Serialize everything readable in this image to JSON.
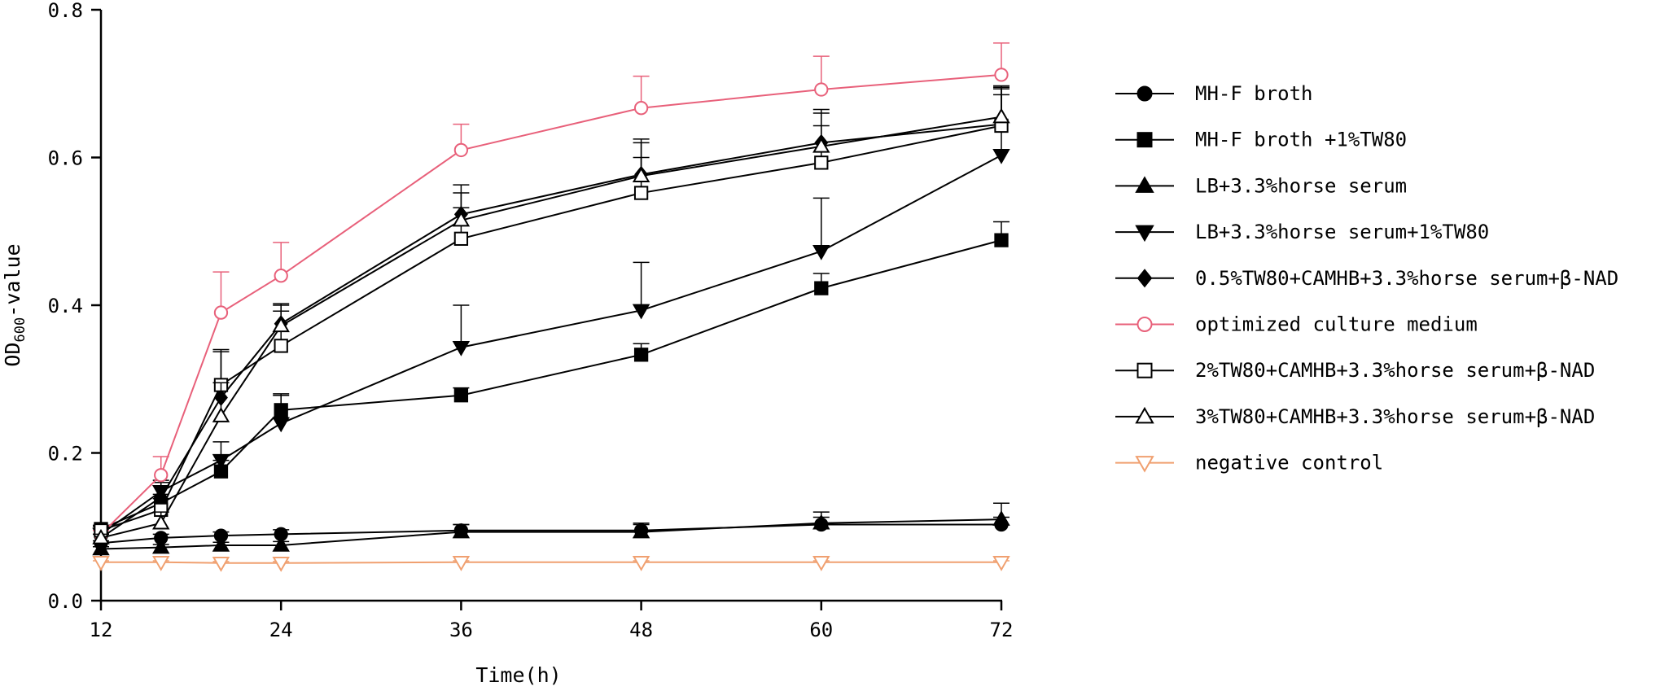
{
  "chart_data": {
    "type": "line",
    "title": "",
    "xlabel": "Time(h)",
    "ylabel": "OD600-value",
    "ylabel_main": "OD",
    "ylabel_sub": "600",
    "ylabel_rest": "-value",
    "xlim": [
      12,
      72
    ],
    "ylim": [
      0,
      0.8
    ],
    "x_ticks": [
      12,
      24,
      36,
      48,
      60,
      72
    ],
    "x_tick_labels": [
      "12",
      "24",
      "36",
      "48",
      "60",
      "72"
    ],
    "y_ticks": [
      0,
      0.2,
      0.4,
      0.6,
      0.8
    ],
    "y_tick_labels": [
      "0.0",
      "0.2",
      "0.4",
      "0.6",
      "0.8"
    ],
    "grid": false,
    "legend_position": "right",
    "x": [
      12,
      16,
      20,
      24,
      36,
      48,
      60,
      72
    ],
    "series": [
      {
        "name": "MH-F broth",
        "marker": "circle-filled",
        "color": "#000000",
        "values": [
          0.078,
          0.085,
          0.088,
          0.09,
          0.095,
          0.095,
          0.103,
          0.103
        ],
        "errors": [
          0.003,
          0.005,
          0.005,
          0.006,
          0.008,
          0.01,
          0.01,
          0.01
        ]
      },
      {
        "name": "MH-F broth +1%TW80",
        "marker": "square-filled",
        "color": "#000000",
        "values": [
          0.097,
          0.132,
          0.175,
          0.258,
          0.278,
          0.333,
          0.423,
          0.488
        ],
        "errors": [
          0.005,
          0.012,
          0.015,
          0.02,
          0.01,
          0.015,
          0.02,
          0.025
        ]
      },
      {
        "name": "LB+3.3%horse serum",
        "marker": "triangle-up-filled",
        "color": "#000000",
        "values": [
          0.07,
          0.072,
          0.075,
          0.075,
          0.093,
          0.093,
          0.105,
          0.11
        ],
        "errors": [
          0.003,
          0.004,
          0.004,
          0.005,
          0.01,
          0.01,
          0.015,
          0.022
        ]
      },
      {
        "name": "LB+3.3%horse serum+1%TW80",
        "marker": "triangle-down-filled",
        "color": "#000000",
        "values": [
          0.09,
          0.148,
          0.19,
          0.24,
          0.343,
          0.393,
          0.473,
          0.603
        ],
        "errors": [
          0.005,
          0.015,
          0.025,
          0.04,
          0.057,
          0.065,
          0.072,
          0.09
        ]
      },
      {
        "name": "0.5%TW80+CAMHB+3.3%horse serum+β-NAD",
        "marker": "diamond-filled",
        "color": "#000000",
        "values": [
          0.085,
          0.14,
          0.275,
          0.375,
          0.523,
          0.577,
          0.62,
          0.645
        ],
        "errors": [
          0.005,
          0.02,
          0.065,
          0.025,
          0.04,
          0.048,
          0.045,
          0.04
        ]
      },
      {
        "name": "optimized culture medium",
        "marker": "circle-open",
        "color": "#e8607a",
        "values": [
          0.09,
          0.17,
          0.39,
          0.44,
          0.61,
          0.667,
          0.692,
          0.712
        ],
        "errors": [
          0.005,
          0.025,
          0.055,
          0.045,
          0.035,
          0.043,
          0.045,
          0.043
        ]
      },
      {
        "name": "2%TW80+CAMHB+3.3%horse serum+β-NAD",
        "marker": "square-open",
        "color": "#000000",
        "values": [
          0.095,
          0.123,
          0.292,
          0.345,
          0.49,
          0.552,
          0.593,
          0.643
        ],
        "errors": [
          0.005,
          0.015,
          0.045,
          0.047,
          0.042,
          0.048,
          0.05,
          0.052
        ]
      },
      {
        "name": "3%TW80+CAMHB+3.3%horse serum+β-NAD",
        "marker": "triangle-up-open",
        "color": "#000000",
        "values": [
          0.085,
          0.105,
          0.25,
          0.372,
          0.515,
          0.575,
          0.615,
          0.655
        ],
        "errors": [
          0.005,
          0.015,
          0.045,
          0.03,
          0.037,
          0.045,
          0.045,
          0.042
        ]
      },
      {
        "name": "negative control",
        "marker": "triangle-down-open",
        "color": "#f0a070",
        "values": [
          0.052,
          0.052,
          0.051,
          0.051,
          0.052,
          0.052,
          0.052,
          0.052
        ],
        "errors": [
          0.002,
          0.002,
          0.002,
          0.002,
          0.002,
          0.002,
          0.002,
          0.002
        ]
      }
    ]
  }
}
